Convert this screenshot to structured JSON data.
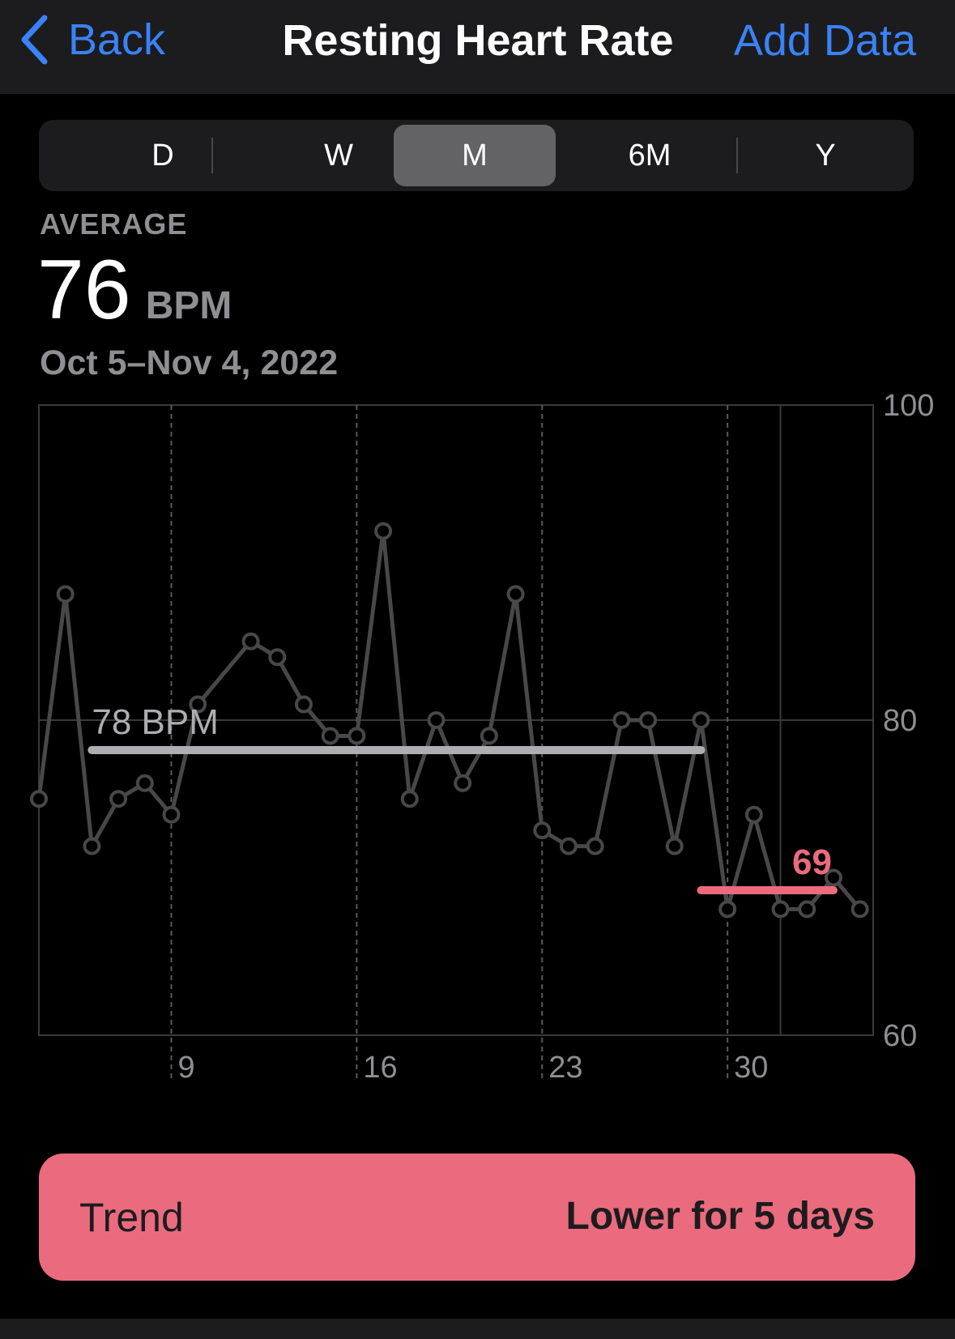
{
  "nav": {
    "back_label": "Back",
    "title": "Resting Heart Rate",
    "add_data_label": "Add Data",
    "accent_color": "#3a82f7"
  },
  "segments": {
    "items": [
      "D",
      "W",
      "M",
      "6M",
      "Y"
    ],
    "selected": "M"
  },
  "summary": {
    "label": "AVERAGE",
    "value": "76",
    "unit": "BPM",
    "date_range": "Oct 5–Nov 4, 2022"
  },
  "chart_data": {
    "type": "line",
    "series": [
      {
        "values": [
          [
            4,
            75
          ],
          [
            5,
            88
          ],
          [
            6,
            72
          ],
          [
            7,
            75
          ],
          [
            8,
            76
          ],
          [
            9,
            74
          ],
          [
            10,
            81
          ],
          [
            12,
            85
          ],
          [
            13,
            84
          ],
          [
            14,
            81
          ],
          [
            15,
            79
          ],
          [
            16,
            79
          ],
          [
            17,
            92
          ],
          [
            18,
            75
          ],
          [
            19,
            80
          ],
          [
            20,
            76
          ],
          [
            21,
            79
          ],
          [
            22,
            88
          ],
          [
            23,
            73
          ],
          [
            24,
            72
          ],
          [
            25,
            72
          ],
          [
            26,
            80
          ],
          [
            27,
            80
          ],
          [
            28,
            72
          ],
          [
            29,
            80
          ],
          [
            30,
            68
          ],
          [
            31,
            74
          ],
          [
            32,
            68
          ],
          [
            33,
            68
          ],
          [
            34,
            70
          ],
          [
            35,
            68
          ]
        ],
        "color": "#48484a"
      }
    ],
    "x_ticks": [
      9,
      16,
      23,
      30
    ],
    "x_tick_labels": [
      "9",
      "16",
      "23",
      "30"
    ],
    "xlim": [
      4,
      35.5
    ],
    "y_ticks": [
      100,
      80,
      60
    ],
    "ylim": [
      60,
      100
    ],
    "reference_lines": [
      {
        "label": "78 BPM",
        "value": 78.1,
        "x_start": 6,
        "x_end": 29,
        "color": "#aeaeb2"
      },
      {
        "label": "69",
        "value": 69.2,
        "x_start": 29,
        "x_end": 34,
        "color": "#eb6b7e"
      }
    ],
    "grid": true
  },
  "trend": {
    "label": "Trend",
    "value": "Lower for 5 days",
    "color": "#eb6b7e"
  }
}
